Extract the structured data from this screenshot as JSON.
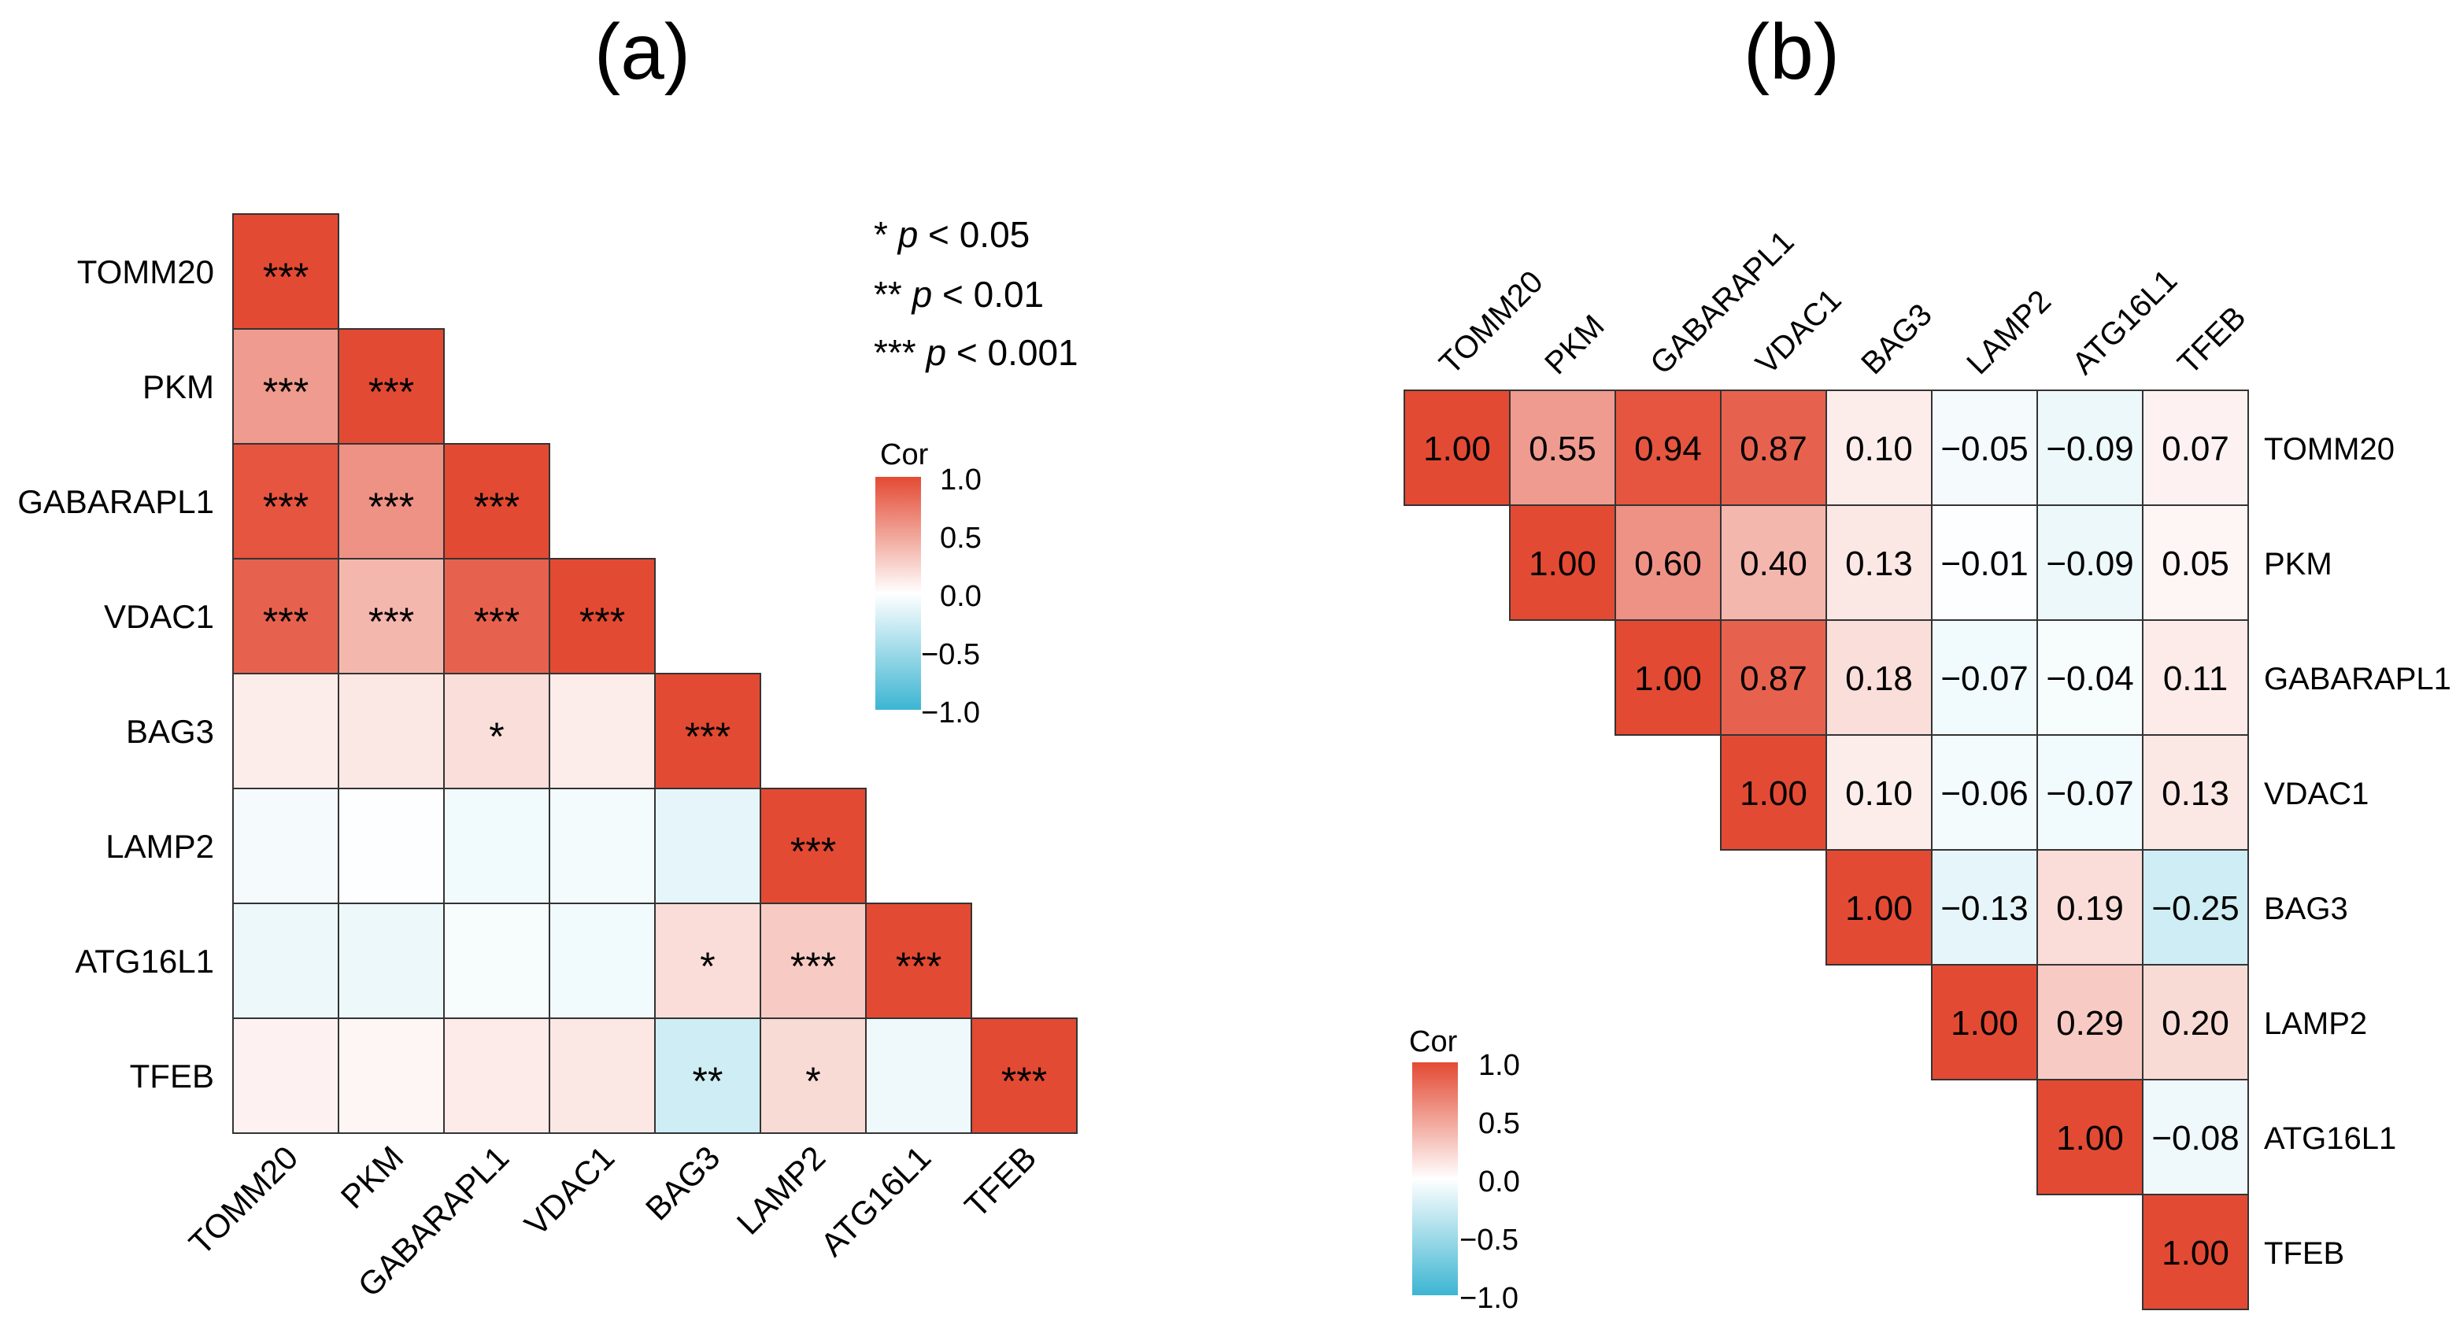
{
  "genes": [
    "TOMM20",
    "PKM",
    "GABARAPL1",
    "VDAC1",
    "BAG3",
    "LAMP2",
    "ATG16L1",
    "TFEB"
  ],
  "colors": {
    "high": "#e34a33",
    "mid": "#ffffff",
    "low": "#3cb5d2",
    "border": "#333333",
    "text": "#000000"
  },
  "chart_data": [
    {
      "type": "heatmap",
      "panel_label": "(a)",
      "shape": "lower-triangle",
      "x_labels": [
        "TOMM20",
        "PKM",
        "GABARAPL1",
        "VDAC1",
        "BAG3",
        "LAMP2",
        "ATG16L1",
        "TFEB"
      ],
      "y_labels": [
        "TOMM20",
        "PKM",
        "GABARAPL1",
        "VDAC1",
        "BAG3",
        "LAMP2",
        "ATG16L1",
        "TFEB"
      ],
      "cell_text": "significance",
      "significance_legend": [
        "* p < 0.05",
        "** p < 0.01",
        "*** p < 0.001"
      ],
      "colorbar": {
        "title": "Cor",
        "ticks": [
          "1.0",
          "0.5",
          "0.0",
          "−0.5",
          "−1.0"
        ],
        "range": [
          -1,
          1
        ]
      },
      "significance": [
        [
          "***",
          "",
          "",
          "",
          "",
          "",
          "",
          ""
        ],
        [
          "***",
          "***",
          "",
          "",
          "",
          "",
          "",
          ""
        ],
        [
          "***",
          "***",
          "***",
          "",
          "",
          "",
          "",
          ""
        ],
        [
          "***",
          "***",
          "***",
          "***",
          "",
          "",
          "",
          ""
        ],
        [
          "",
          "",
          "*",
          "",
          "***",
          "",
          "",
          ""
        ],
        [
          "",
          "",
          "",
          "",
          "",
          "***",
          "",
          ""
        ],
        [
          "",
          "",
          "",
          "",
          "*",
          "***",
          "***",
          ""
        ],
        [
          "",
          "",
          "",
          "",
          "**",
          "*",
          "",
          "***"
        ]
      ]
    },
    {
      "type": "heatmap",
      "panel_label": "(b)",
      "shape": "upper-triangle",
      "x_labels": [
        "TOMM20",
        "PKM",
        "GABARAPL1",
        "VDAC1",
        "BAG3",
        "LAMP2",
        "ATG16L1",
        "TFEB"
      ],
      "y_labels": [
        "TOMM20",
        "PKM",
        "GABARAPL1",
        "VDAC1",
        "BAG3",
        "LAMP2",
        "ATG16L1",
        "TFEB"
      ],
      "cell_text": "value",
      "colorbar": {
        "title": "Cor",
        "ticks": [
          "1.0",
          "0.5",
          "0.0",
          "−0.5",
          "−1.0"
        ],
        "range": [
          -1,
          1
        ]
      },
      "cor_labels": [
        [
          "1.00",
          "0.55",
          "0.94",
          "0.87",
          "0.10",
          "−0.05",
          "−0.09",
          "0.07"
        ],
        [
          "0.55",
          "1.00",
          "0.60",
          "0.40",
          "0.13",
          "−0.01",
          "−0.09",
          "0.05"
        ],
        [
          "0.94",
          "0.60",
          "1.00",
          "0.87",
          "0.18",
          "−0.07",
          "−0.04",
          "0.11"
        ],
        [
          "0.87",
          "0.40",
          "0.87",
          "1.00",
          "0.10",
          "−0.06",
          "−0.07",
          "0.13"
        ],
        [
          "0.10",
          "0.13",
          "0.18",
          "0.10",
          "1.00",
          "−0.13",
          "0.19",
          "−0.25"
        ],
        [
          "−0.05",
          "−0.01",
          "−0.07",
          "−0.06",
          "−0.13",
          "1.00",
          "0.29",
          "0.20"
        ],
        [
          "−0.09",
          "−0.09",
          "−0.04",
          "−0.07",
          "0.19",
          "0.29",
          "1.00",
          "−0.08"
        ],
        [
          "0.07",
          "0.05",
          "0.11",
          "0.13",
          "−0.25",
          "0.20",
          "−0.08",
          "1.00"
        ]
      ]
    }
  ]
}
